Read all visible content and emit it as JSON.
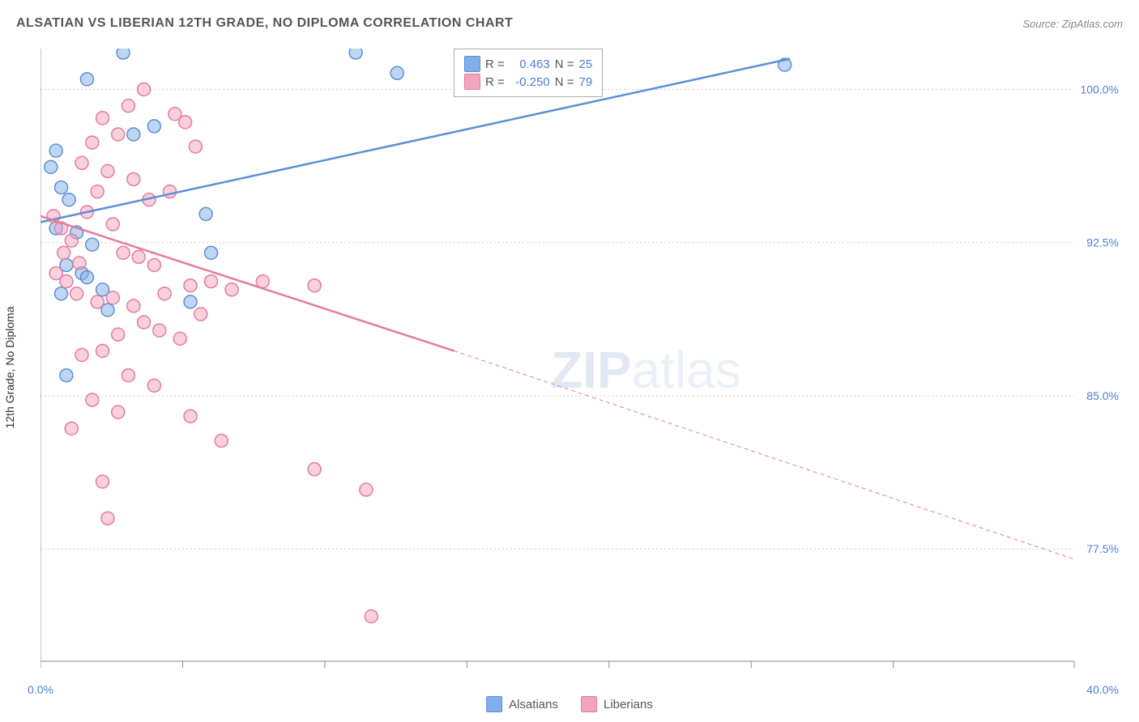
{
  "title": "ALSATIAN VS LIBERIAN 12TH GRADE, NO DIPLOMA CORRELATION CHART",
  "source": "Source: ZipAtlas.com",
  "ylabel": "12th Grade, No Diploma",
  "watermark_bold": "ZIP",
  "watermark_light": "atlas",
  "chart": {
    "type": "scatter",
    "background_color": "#ffffff",
    "grid_color": "#cccccc",
    "axis_color": "#888888",
    "label_color": "#4a7fd6",
    "label_fontsize": 14,
    "xlim": [
      0,
      40
    ],
    "ylim": [
      72,
      102
    ],
    "xticks": [
      0,
      5.5,
      11,
      16.5,
      22,
      27.5,
      33,
      40
    ],
    "xtick_labels": [
      "0.0%",
      "",
      "",
      "",
      "",
      "",
      "",
      "40.0%"
    ],
    "yticks": [
      77.5,
      85.0,
      92.5,
      100.0
    ],
    "ytick_labels": [
      "77.5%",
      "85.0%",
      "92.5%",
      "100.0%"
    ],
    "marker_radius": 8,
    "series": [
      {
        "name": "Alsatians",
        "color_fill": "#7faee8",
        "color_stroke": "#5b8fd6",
        "R": "0.463",
        "N": "25",
        "trend": {
          "x1": 0,
          "y1": 93.5,
          "x2_solid": 29,
          "y2_solid": 101.5,
          "x2_dash": 29,
          "y2_dash": 101.5
        },
        "points": [
          [
            3.2,
            101.8
          ],
          [
            1.8,
            100.5
          ],
          [
            4.4,
            98.2
          ],
          [
            3.6,
            97.8
          ],
          [
            0.6,
            97.0
          ],
          [
            0.4,
            96.2
          ],
          [
            0.8,
            95.2
          ],
          [
            1.1,
            94.6
          ],
          [
            0.6,
            93.2
          ],
          [
            1.4,
            93.0
          ],
          [
            2.0,
            92.4
          ],
          [
            6.4,
            93.9
          ],
          [
            6.6,
            92.0
          ],
          [
            1.0,
            91.4
          ],
          [
            1.6,
            91.0
          ],
          [
            1.8,
            90.8
          ],
          [
            2.4,
            90.2
          ],
          [
            0.8,
            90.0
          ],
          [
            12.2,
            101.8
          ],
          [
            13.8,
            100.8
          ],
          [
            28.8,
            101.2
          ],
          [
            1.0,
            86.0
          ],
          [
            5.8,
            89.6
          ],
          [
            2.6,
            89.2
          ]
        ]
      },
      {
        "name": "Liberians",
        "color_fill": "#f2a4bc",
        "color_stroke": "#e67a9d",
        "R": "-0.250",
        "N": "79",
        "trend": {
          "x1": 0,
          "y1": 93.8,
          "x2_solid": 16,
          "y2_solid": 87.2,
          "x2_dash": 40,
          "y2_dash": 77.0
        },
        "points": [
          [
            0.5,
            93.8
          ],
          [
            0.8,
            93.2
          ],
          [
            1.2,
            92.6
          ],
          [
            0.9,
            92.0
          ],
          [
            1.5,
            91.5
          ],
          [
            0.6,
            91.0
          ],
          [
            1.0,
            90.6
          ],
          [
            1.8,
            94.0
          ],
          [
            2.2,
            95.0
          ],
          [
            2.6,
            96.0
          ],
          [
            3.0,
            97.8
          ],
          [
            2.4,
            98.6
          ],
          [
            3.4,
            99.2
          ],
          [
            4.0,
            100.0
          ],
          [
            5.2,
            98.8
          ],
          [
            5.6,
            98.4
          ],
          [
            6.0,
            97.2
          ],
          [
            3.6,
            95.6
          ],
          [
            4.2,
            94.6
          ],
          [
            5.0,
            95.0
          ],
          [
            1.6,
            96.4
          ],
          [
            2.0,
            97.4
          ],
          [
            2.8,
            93.4
          ],
          [
            3.2,
            92.0
          ],
          [
            3.8,
            91.8
          ],
          [
            4.4,
            91.4
          ],
          [
            1.4,
            90.0
          ],
          [
            2.2,
            89.6
          ],
          [
            2.8,
            89.8
          ],
          [
            3.6,
            89.4
          ],
          [
            4.8,
            90.0
          ],
          [
            5.8,
            90.4
          ],
          [
            6.6,
            90.6
          ],
          [
            4.0,
            88.6
          ],
          [
            4.6,
            88.2
          ],
          [
            5.4,
            87.8
          ],
          [
            6.2,
            89.0
          ],
          [
            7.4,
            90.2
          ],
          [
            8.6,
            90.6
          ],
          [
            10.6,
            90.4
          ],
          [
            3.0,
            88.0
          ],
          [
            2.4,
            87.2
          ],
          [
            1.6,
            87.0
          ],
          [
            3.4,
            86.0
          ],
          [
            4.4,
            85.5
          ],
          [
            2.0,
            84.8
          ],
          [
            3.0,
            84.2
          ],
          [
            1.2,
            83.4
          ],
          [
            5.8,
            84.0
          ],
          [
            7.0,
            82.8
          ],
          [
            2.4,
            80.8
          ],
          [
            2.6,
            79.0
          ],
          [
            10.6,
            81.4
          ],
          [
            12.6,
            80.4
          ],
          [
            12.8,
            74.2
          ]
        ]
      }
    ]
  },
  "legend_top_rows": [
    {
      "swatch_fill": "#7faee8",
      "swatch_stroke": "#5b8fd6",
      "r_lbl": "R =",
      "r_val": "0.463",
      "n_lbl": "N =",
      "n_val": "25"
    },
    {
      "swatch_fill": "#f2a4bc",
      "swatch_stroke": "#e67a9d",
      "r_lbl": "R =",
      "r_val": "-0.250",
      "n_lbl": "N =",
      "n_val": "79"
    }
  ],
  "legend_bottom": [
    {
      "swatch_fill": "#7faee8",
      "swatch_stroke": "#5b8fd6",
      "label": "Alsatians"
    },
    {
      "swatch_fill": "#f2a4bc",
      "swatch_stroke": "#e67a9d",
      "label": "Liberians"
    }
  ]
}
